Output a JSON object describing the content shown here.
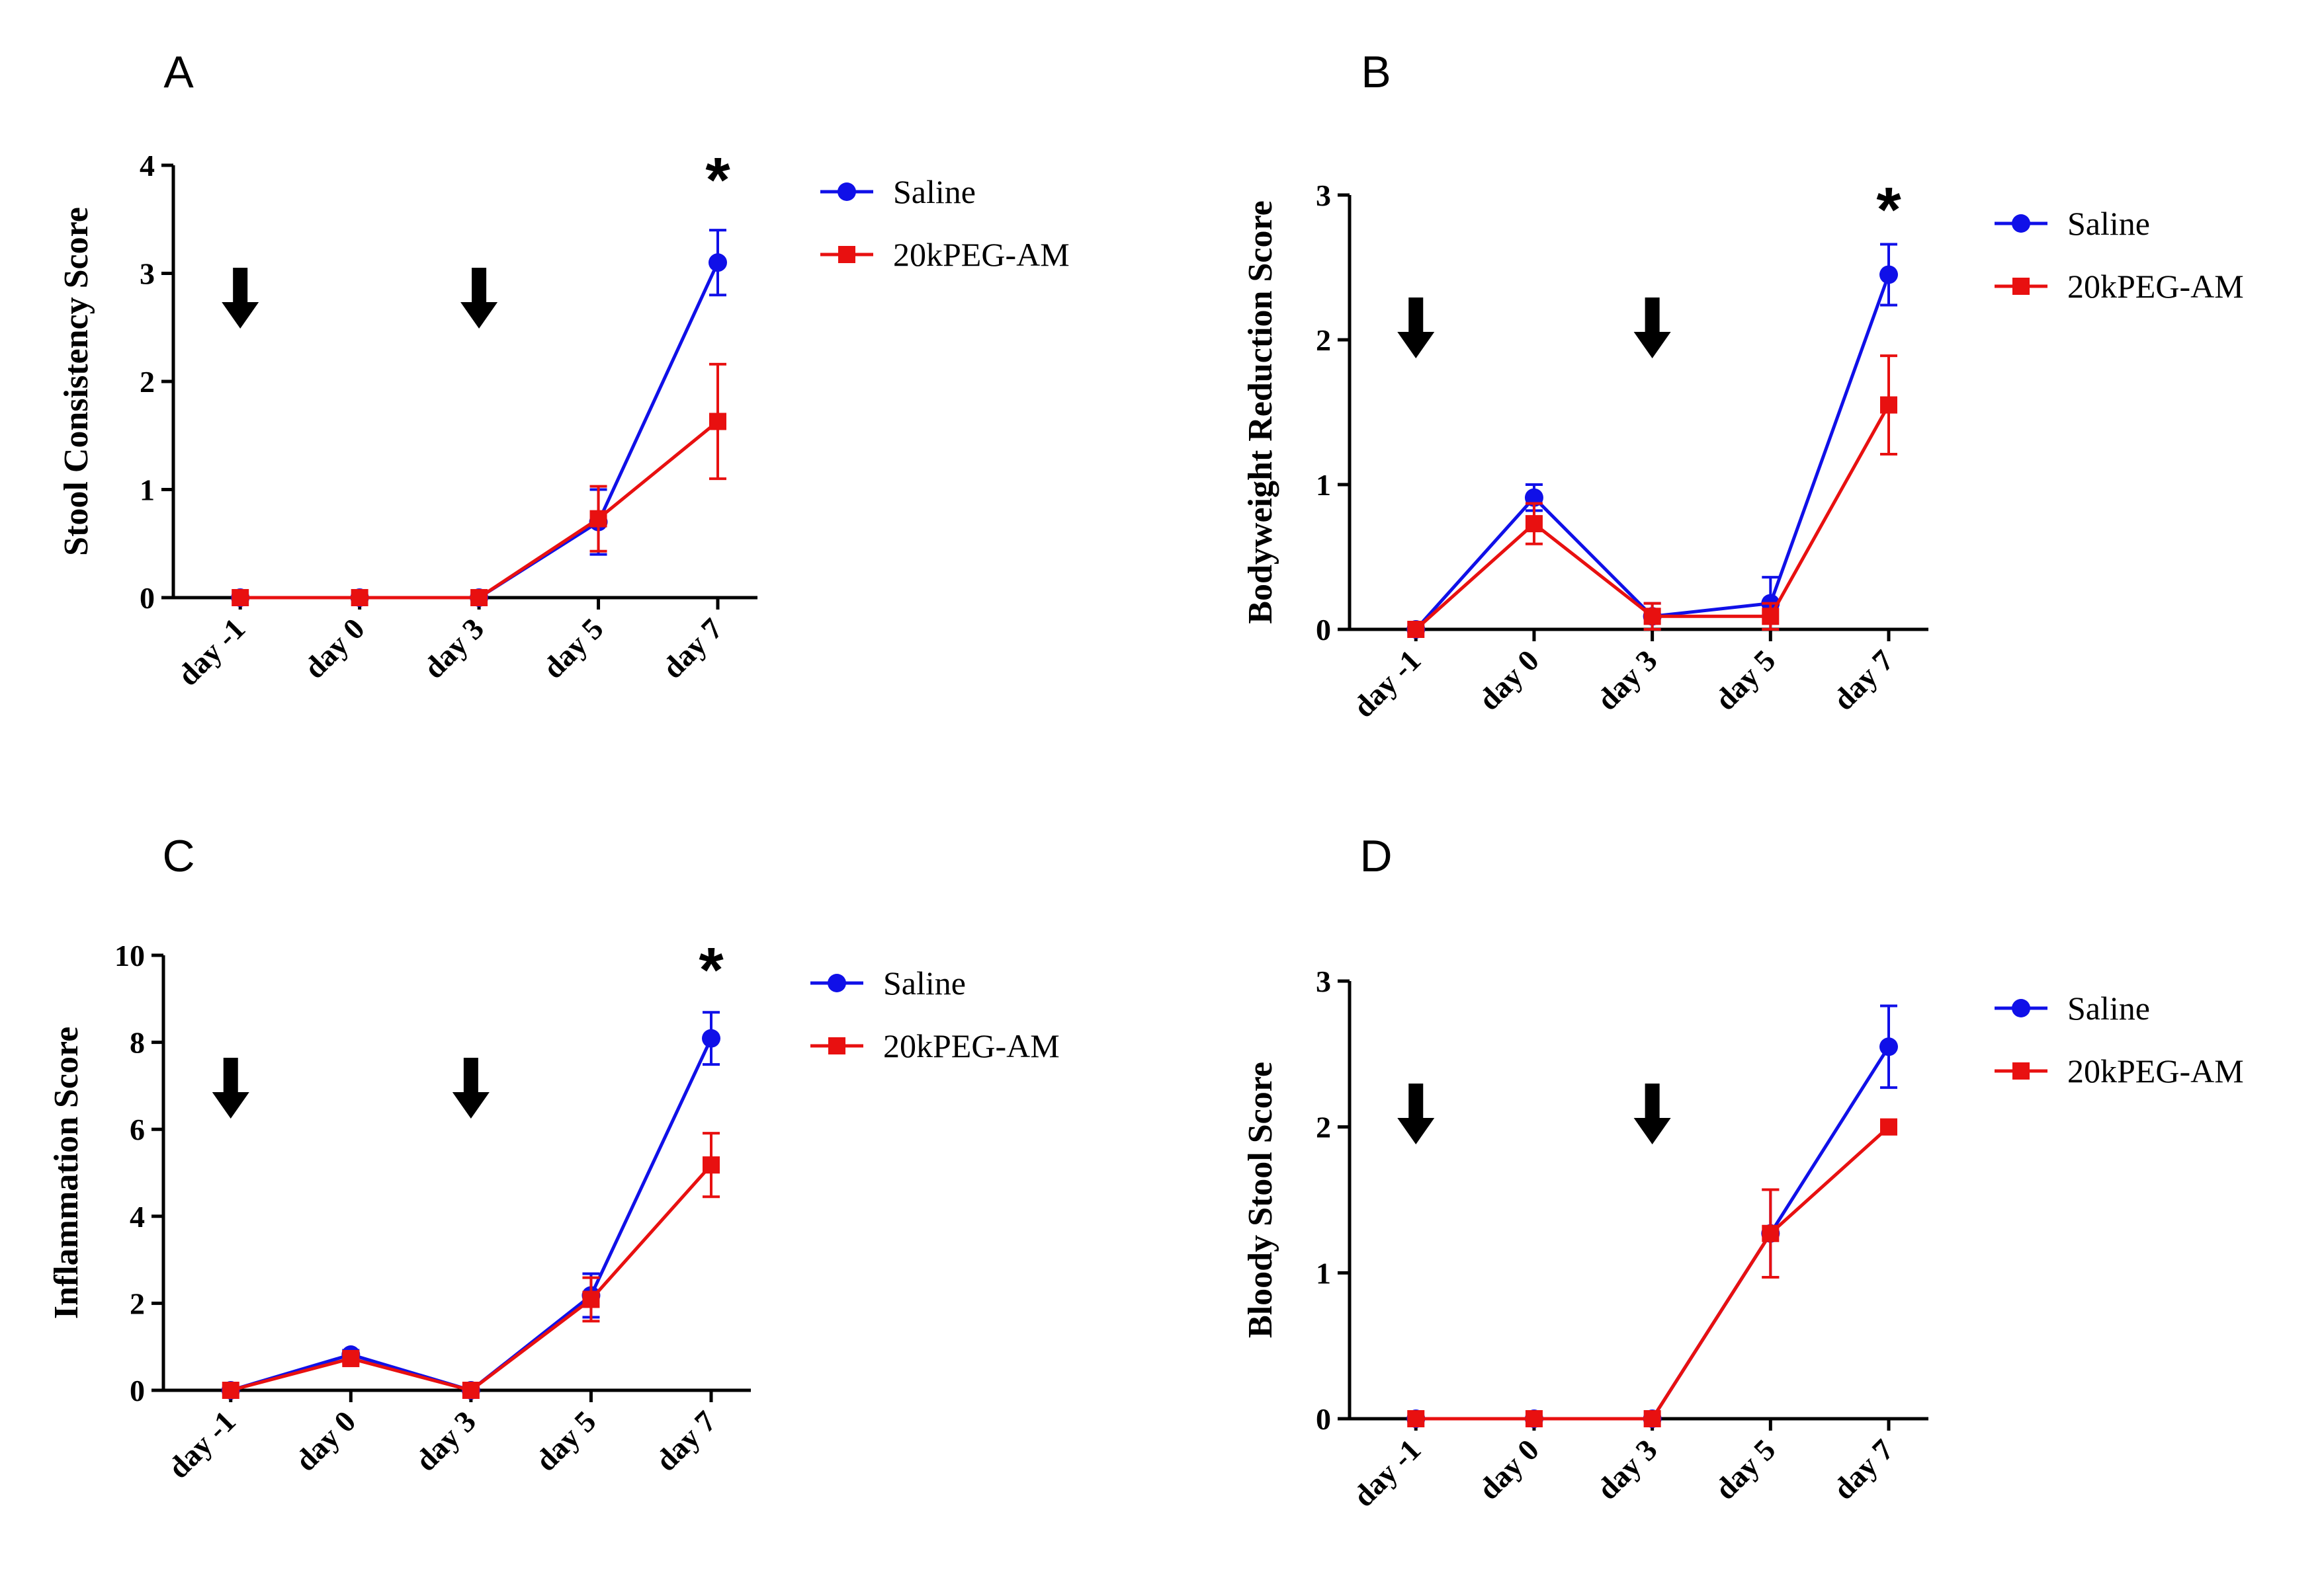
{
  "chart_data": [
    {
      "panel": "A",
      "type": "line",
      "ylabel": "Stool Consistency Score",
      "ylim": [
        0,
        4
      ],
      "yticks": [
        "0",
        "1",
        "2",
        "3",
        "4"
      ],
      "categories": [
        "day -1",
        "day 0",
        "day 3",
        "day 5",
        "day 7"
      ],
      "series": [
        {
          "name": "Saline",
          "values": [
            0,
            0,
            0,
            0.7,
            3.1
          ],
          "errors": [
            0,
            0,
            0,
            0.3,
            0.3
          ]
        },
        {
          "name": "20kPEG-AM",
          "values": [
            0,
            0,
            0,
            0.73,
            1.63
          ],
          "errors": [
            0,
            0,
            0,
            0.3,
            0.53
          ]
        }
      ],
      "arrows_at": [
        "day -1",
        "day 3"
      ],
      "significance": [
        {
          "at": "day 7",
          "label": "*"
        }
      ]
    },
    {
      "panel": "B",
      "type": "line",
      "ylabel": "Bodyweight Reduction Score",
      "ylim": [
        0,
        3
      ],
      "yticks": [
        "0",
        "1",
        "2",
        "3"
      ],
      "categories": [
        "day -1",
        "day 0",
        "day 3",
        "day 5",
        "day 7"
      ],
      "series": [
        {
          "name": "Saline",
          "values": [
            0,
            0.91,
            0.09,
            0.18,
            2.45
          ],
          "errors": [
            0,
            0.09,
            0.09,
            0.18,
            0.21
          ]
        },
        {
          "name": "20kPEG-AM",
          "values": [
            0,
            0.73,
            0.09,
            0.09,
            1.55
          ],
          "errors": [
            0,
            0.14,
            0.09,
            0.09,
            0.34
          ]
        }
      ],
      "arrows_at": [
        "day -1",
        "day 3"
      ],
      "significance": [
        {
          "at": "day 7",
          "label": "*"
        }
      ]
    },
    {
      "panel": "C",
      "type": "line",
      "ylabel": "Inflammation Score",
      "ylim": [
        0,
        10
      ],
      "yticks": [
        "0",
        "2",
        "4",
        "6",
        "8",
        "10"
      ],
      "categories": [
        "day -1",
        "day 0",
        "day 3",
        "day 5",
        "day 7"
      ],
      "series": [
        {
          "name": "Saline",
          "values": [
            0,
            0.82,
            0,
            2.18,
            8.09
          ],
          "errors": [
            0,
            0.1,
            0,
            0.5,
            0.6
          ]
        },
        {
          "name": "20kPEG-AM",
          "values": [
            0,
            0.73,
            0,
            2.09,
            5.18
          ],
          "errors": [
            0,
            0.1,
            0,
            0.5,
            0.73
          ]
        }
      ],
      "arrows_at": [
        "day -1",
        "day 3"
      ],
      "significance": [
        {
          "at": "day 7",
          "label": "*"
        }
      ]
    },
    {
      "panel": "D",
      "type": "line",
      "ylabel": "Bloody Stool Score",
      "ylim": [
        0,
        3
      ],
      "yticks": [
        "0",
        "1",
        "2",
        "3"
      ],
      "categories": [
        "day -1",
        "day 0",
        "day 3",
        "day 5",
        "day 7"
      ],
      "series": [
        {
          "name": "Saline",
          "values": [
            0,
            0,
            0,
            1.27,
            2.55
          ],
          "errors": [
            0,
            0,
            0,
            0.3,
            0.28
          ]
        },
        {
          "name": "20kPEG-AM",
          "values": [
            0,
            0,
            0,
            1.27,
            2.0
          ],
          "errors": [
            0,
            0,
            0,
            0.3,
            0.02
          ]
        }
      ],
      "arrows_at": [
        "day -1",
        "day 3"
      ],
      "significance": []
    }
  ],
  "colors": {
    "saline": "#1010e8",
    "peg": "#e81010",
    "axis": "#000000"
  },
  "marker_icons": {
    "saline": "circle-marker",
    "peg": "square-marker",
    "arrow": "down-arrow-icon"
  }
}
